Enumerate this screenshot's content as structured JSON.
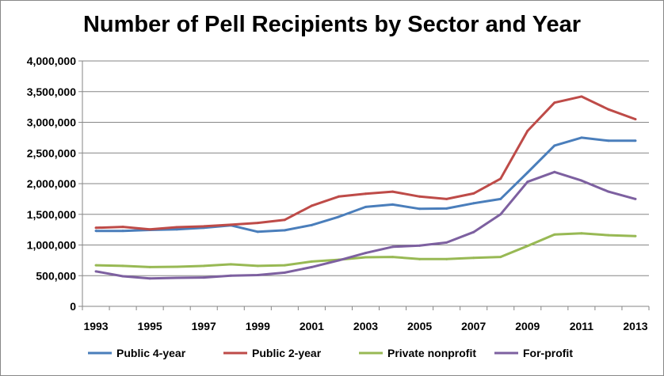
{
  "chart_data": {
    "type": "line",
    "title": "Number of Pell Recipients by Sector and Year",
    "xlabel": "",
    "ylabel": "",
    "x": [
      1993,
      1994,
      1995,
      1996,
      1997,
      1998,
      1999,
      2000,
      2001,
      2002,
      2003,
      2004,
      2005,
      2006,
      2007,
      2008,
      2009,
      2010,
      2011,
      2012,
      2013
    ],
    "x_tick_labels": [
      "1993",
      "1995",
      "1997",
      "1999",
      "2001",
      "2003",
      "2005",
      "2007",
      "2009",
      "2011",
      "2013"
    ],
    "y_tick_labels": [
      "0",
      "500,000",
      "1,000,000",
      "1,500,000",
      "2,000,000",
      "2,500,000",
      "3,000,000",
      "3,500,000",
      "4,000,000"
    ],
    "ylim": [
      0,
      4000000
    ],
    "grid": true,
    "legend": "bottom",
    "series": [
      {
        "name": "Public 4-year",
        "color": "#4a7ebb",
        "values": [
          1230000,
          1230000,
          1245000,
          1255000,
          1280000,
          1320000,
          1215000,
          1240000,
          1325000,
          1460000,
          1620000,
          1660000,
          1590000,
          1595000,
          1680000,
          1750000,
          2180000,
          2620000,
          2750000,
          2700000,
          2700000
        ]
      },
      {
        "name": "Public 2-year",
        "color": "#be4b48",
        "values": [
          1280000,
          1295000,
          1255000,
          1290000,
          1305000,
          1330000,
          1360000,
          1410000,
          1640000,
          1790000,
          1835000,
          1870000,
          1790000,
          1750000,
          1840000,
          2080000,
          2860000,
          3320000,
          3420000,
          3210000,
          3050000
        ]
      },
      {
        "name": "Private nonprofit",
        "color": "#98b954",
        "values": [
          670000,
          660000,
          640000,
          645000,
          660000,
          685000,
          660000,
          670000,
          730000,
          760000,
          800000,
          805000,
          770000,
          770000,
          790000,
          805000,
          985000,
          1170000,
          1190000,
          1160000,
          1145000
        ]
      },
      {
        "name": "For-profit",
        "color": "#7d60a0",
        "values": [
          570000,
          490000,
          455000,
          465000,
          470000,
          500000,
          510000,
          550000,
          640000,
          750000,
          870000,
          970000,
          990000,
          1040000,
          1210000,
          1500000,
          2030000,
          2190000,
          2050000,
          1870000,
          1750000
        ]
      }
    ]
  }
}
